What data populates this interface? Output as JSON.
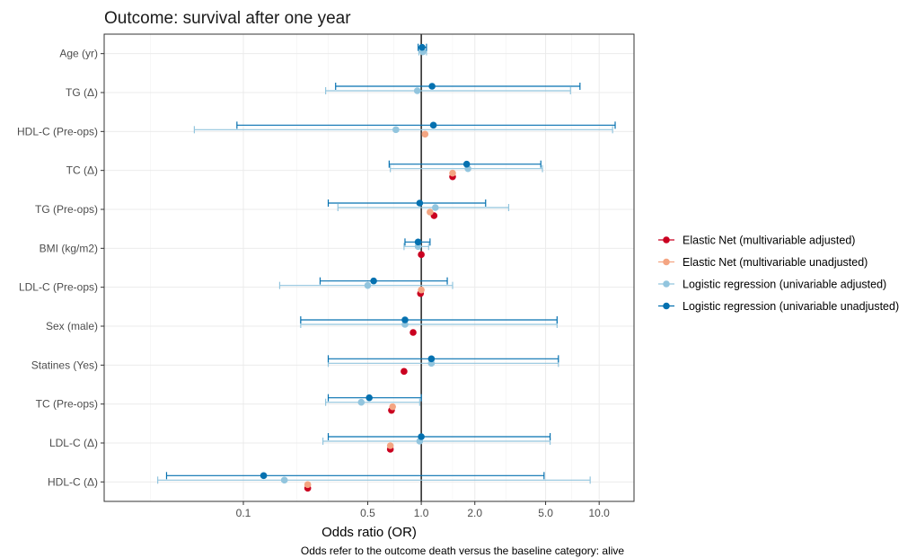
{
  "chart_data": {
    "type": "scatter",
    "subtype": "forest-plot",
    "title": "Outcome: survival after one year",
    "xlabel": "Odds ratio (OR)",
    "caption": "Odds refer to the outcome death versus the baseline category: alive",
    "x_scale": "log10",
    "xlim": [
      0.0165,
      15.7
    ],
    "x_ticks": [
      0.1,
      0.5,
      1.0,
      2.0,
      5.0,
      10.0
    ],
    "x_tick_labels": [
      "0.1",
      "0.5",
      "1.0",
      "2.0",
      "5.0",
      "10.0"
    ],
    "reference_line": 1.0,
    "grid": true,
    "legend_position": "right",
    "categories": [
      "Age (yr)",
      "TG (Δ)",
      "HDL-C (Pre-ops)",
      "TC (Δ)",
      "TG (Pre-ops)",
      "BMI (kg/m2)",
      "LDL-C (Pre-ops)",
      "Sex (male)",
      "Statines (Yes)",
      "TC (Pre-ops)",
      "LDL-C (Δ)",
      "HDL-C (Δ)"
    ],
    "series": [
      {
        "name": "Elastic Net (multivariable adjusted)",
        "color": "#ca0020",
        "estimate": [
          null,
          null,
          null,
          1.5,
          1.18,
          1.0,
          0.99,
          0.9,
          0.8,
          0.68,
          0.67,
          0.23
        ],
        "lower": [
          null,
          null,
          null,
          null,
          null,
          null,
          null,
          null,
          null,
          null,
          null,
          null
        ],
        "upper": [
          null,
          null,
          null,
          null,
          null,
          null,
          null,
          null,
          null,
          null,
          null,
          null
        ]
      },
      {
        "name": "Elastic Net (multivariable unadjusted)",
        "color": "#f4a582",
        "estimate": [
          null,
          null,
          1.05,
          1.5,
          1.12,
          null,
          1.0,
          null,
          null,
          0.69,
          0.67,
          0.23
        ],
        "lower": [
          null,
          null,
          null,
          null,
          null,
          null,
          null,
          null,
          null,
          null,
          null,
          null
        ],
        "upper": [
          null,
          null,
          null,
          null,
          null,
          null,
          null,
          null,
          null,
          null,
          null,
          null
        ]
      },
      {
        "name": "Logistic regression (univariable adjusted)",
        "color": "#92c5de",
        "estimate": [
          1.02,
          0.95,
          0.72,
          1.83,
          1.2,
          0.96,
          0.5,
          0.81,
          1.14,
          0.46,
          0.98,
          0.17
        ],
        "lower": [
          0.97,
          0.29,
          0.053,
          0.67,
          0.34,
          0.8,
          0.16,
          0.21,
          0.3,
          0.29,
          0.28,
          0.033
        ],
        "upper": [
          1.07,
          6.9,
          11.9,
          4.8,
          3.1,
          1.1,
          1.5,
          5.8,
          5.9,
          0.98,
          5.3,
          8.9
        ]
      },
      {
        "name": "Logistic regression (univariable unadjusted)",
        "color": "#0571b0",
        "estimate": [
          1.01,
          1.15,
          1.17,
          1.8,
          0.98,
          0.96,
          0.54,
          0.81,
          1.14,
          0.51,
          1.0,
          0.13
        ],
        "lower": [
          0.96,
          0.33,
          0.092,
          0.66,
          0.3,
          0.81,
          0.27,
          0.21,
          0.3,
          0.3,
          0.3,
          0.037
        ],
        "upper": [
          1.07,
          7.8,
          12.3,
          4.7,
          2.3,
          1.12,
          1.4,
          5.8,
          5.9,
          1.0,
          5.3,
          4.9
        ]
      }
    ]
  }
}
